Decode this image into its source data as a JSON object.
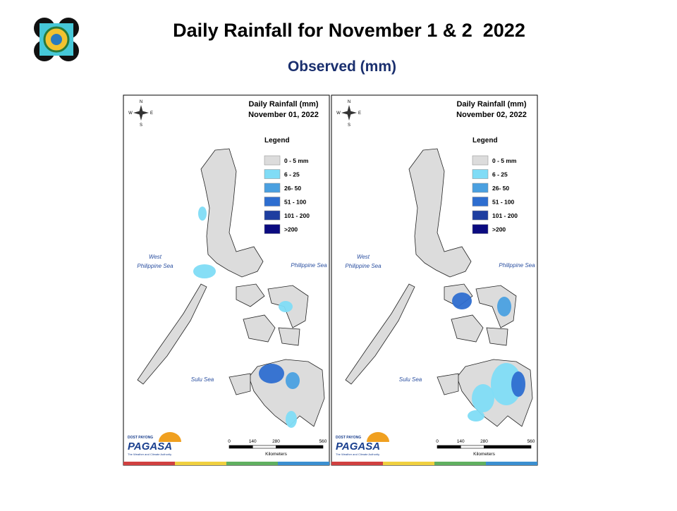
{
  "header": {
    "title": "Daily Rainfall for November 1 & 2  2022",
    "subtitle": "Observed (mm)"
  },
  "maps": [
    {
      "title": "Daily Rainfall (mm)",
      "date": "November 01, 2022"
    },
    {
      "title": "Daily Rainfall (mm)",
      "date": "November 02, 2022"
    }
  ],
  "legend": {
    "title": "Legend",
    "items": [
      {
        "label": "0 - 5 mm",
        "color": "#dcdcdc"
      },
      {
        "label": "6 - 25",
        "color": "#80dcf6"
      },
      {
        "label": "26- 50",
        "color": "#4aa0e0"
      },
      {
        "label": "51 - 100",
        "color": "#2e6ed0"
      },
      {
        "label": "101 - 200",
        "color": "#1e3ea0"
      },
      {
        "label": ">200",
        "color": "#0b0b80"
      }
    ]
  },
  "compass": {
    "north": "N",
    "south": "S",
    "east": "E",
    "west": "W"
  },
  "sea_labels": {
    "west_line1": "West",
    "west_line2": "Philippine Sea",
    "east": "Philippine Sea",
    "south": "Sulu Sea"
  },
  "scale": {
    "ticks": [
      0,
      140,
      280,
      560
    ],
    "unit": "Kilometers"
  },
  "branding": {
    "top": "DOST PAYONG",
    "name": "PAGASA",
    "tagline": "The Weather and Climate Authority"
  }
}
